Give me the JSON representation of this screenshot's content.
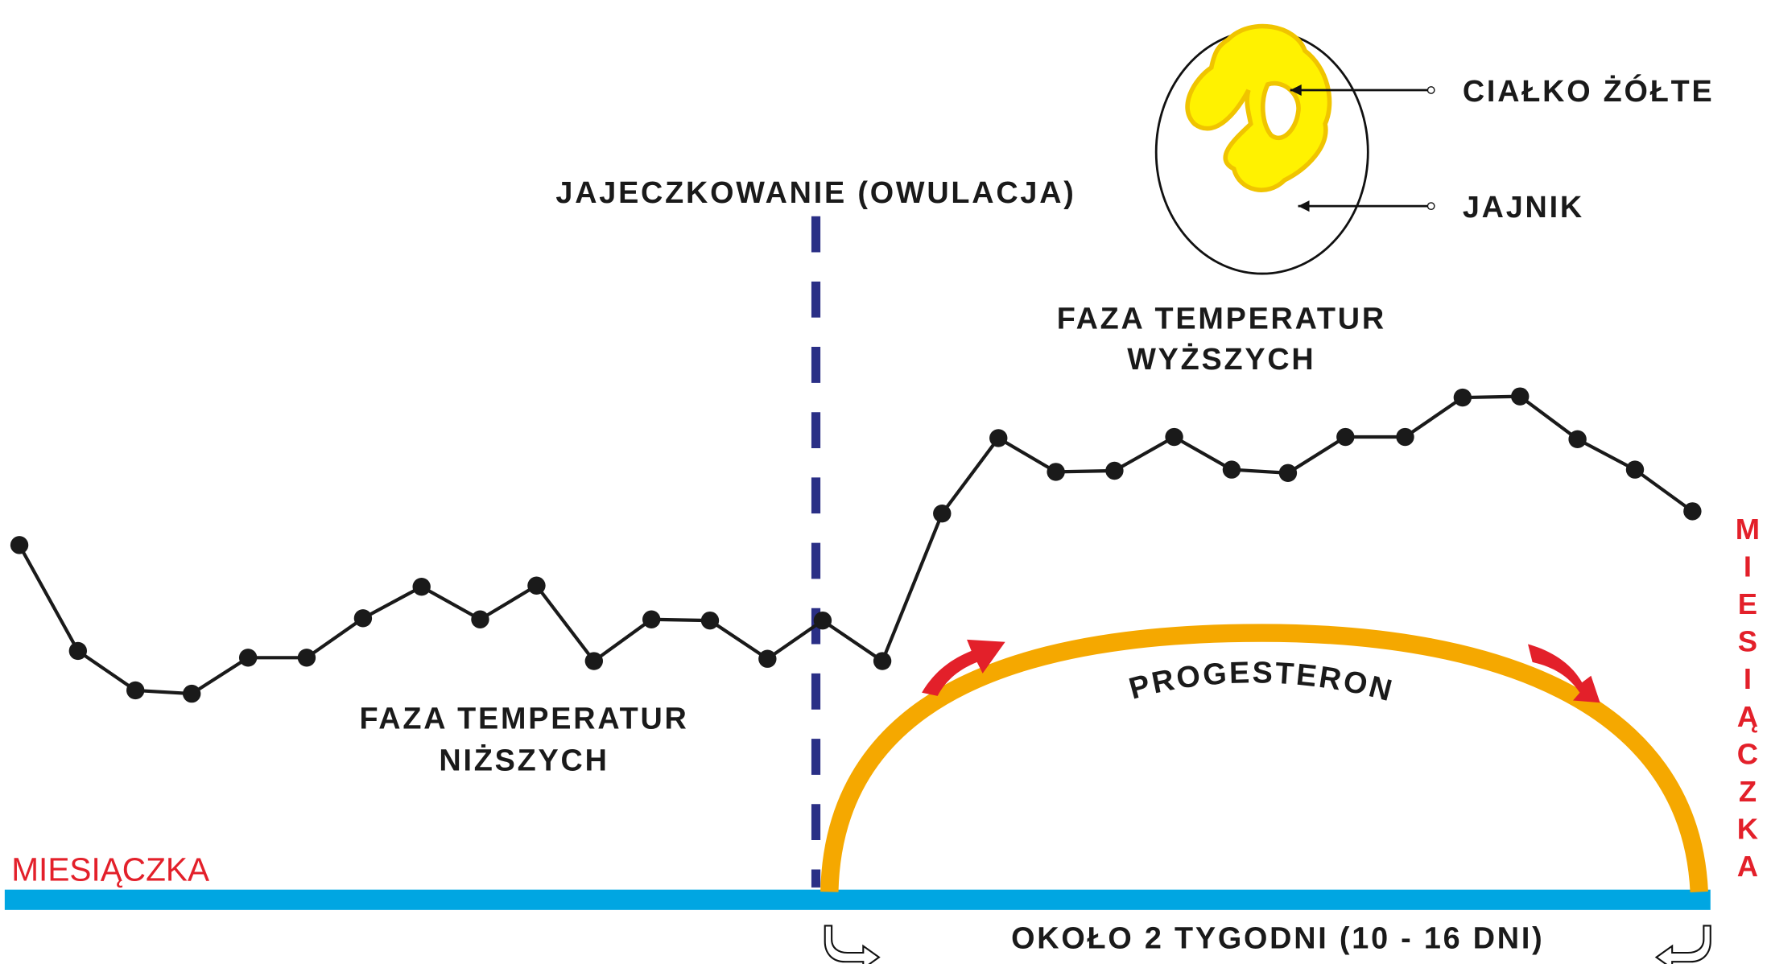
{
  "ovulation_label": "JAJECZKOWANIE (OWULACJA)",
  "corpus_luteum_label": "CIAŁKO ŻÓŁTE",
  "ovary_label": "JAJNIK",
  "high_phase": {
    "lines": [
      "FAZA TEMPERATUR",
      "WYŻSZYCH"
    ]
  },
  "low_phase": {
    "lines": [
      "FAZA TEMPERATUR",
      "NIŻSZYCH"
    ]
  },
  "hormone_label": "PROGESTERON",
  "menstruation_left": "MIESIĄCZKA",
  "menstruation_right": "MIESIĄCZKA",
  "duration_label": "OKOŁO 2 TYGODNI (10 - 16 DNI)"
}
